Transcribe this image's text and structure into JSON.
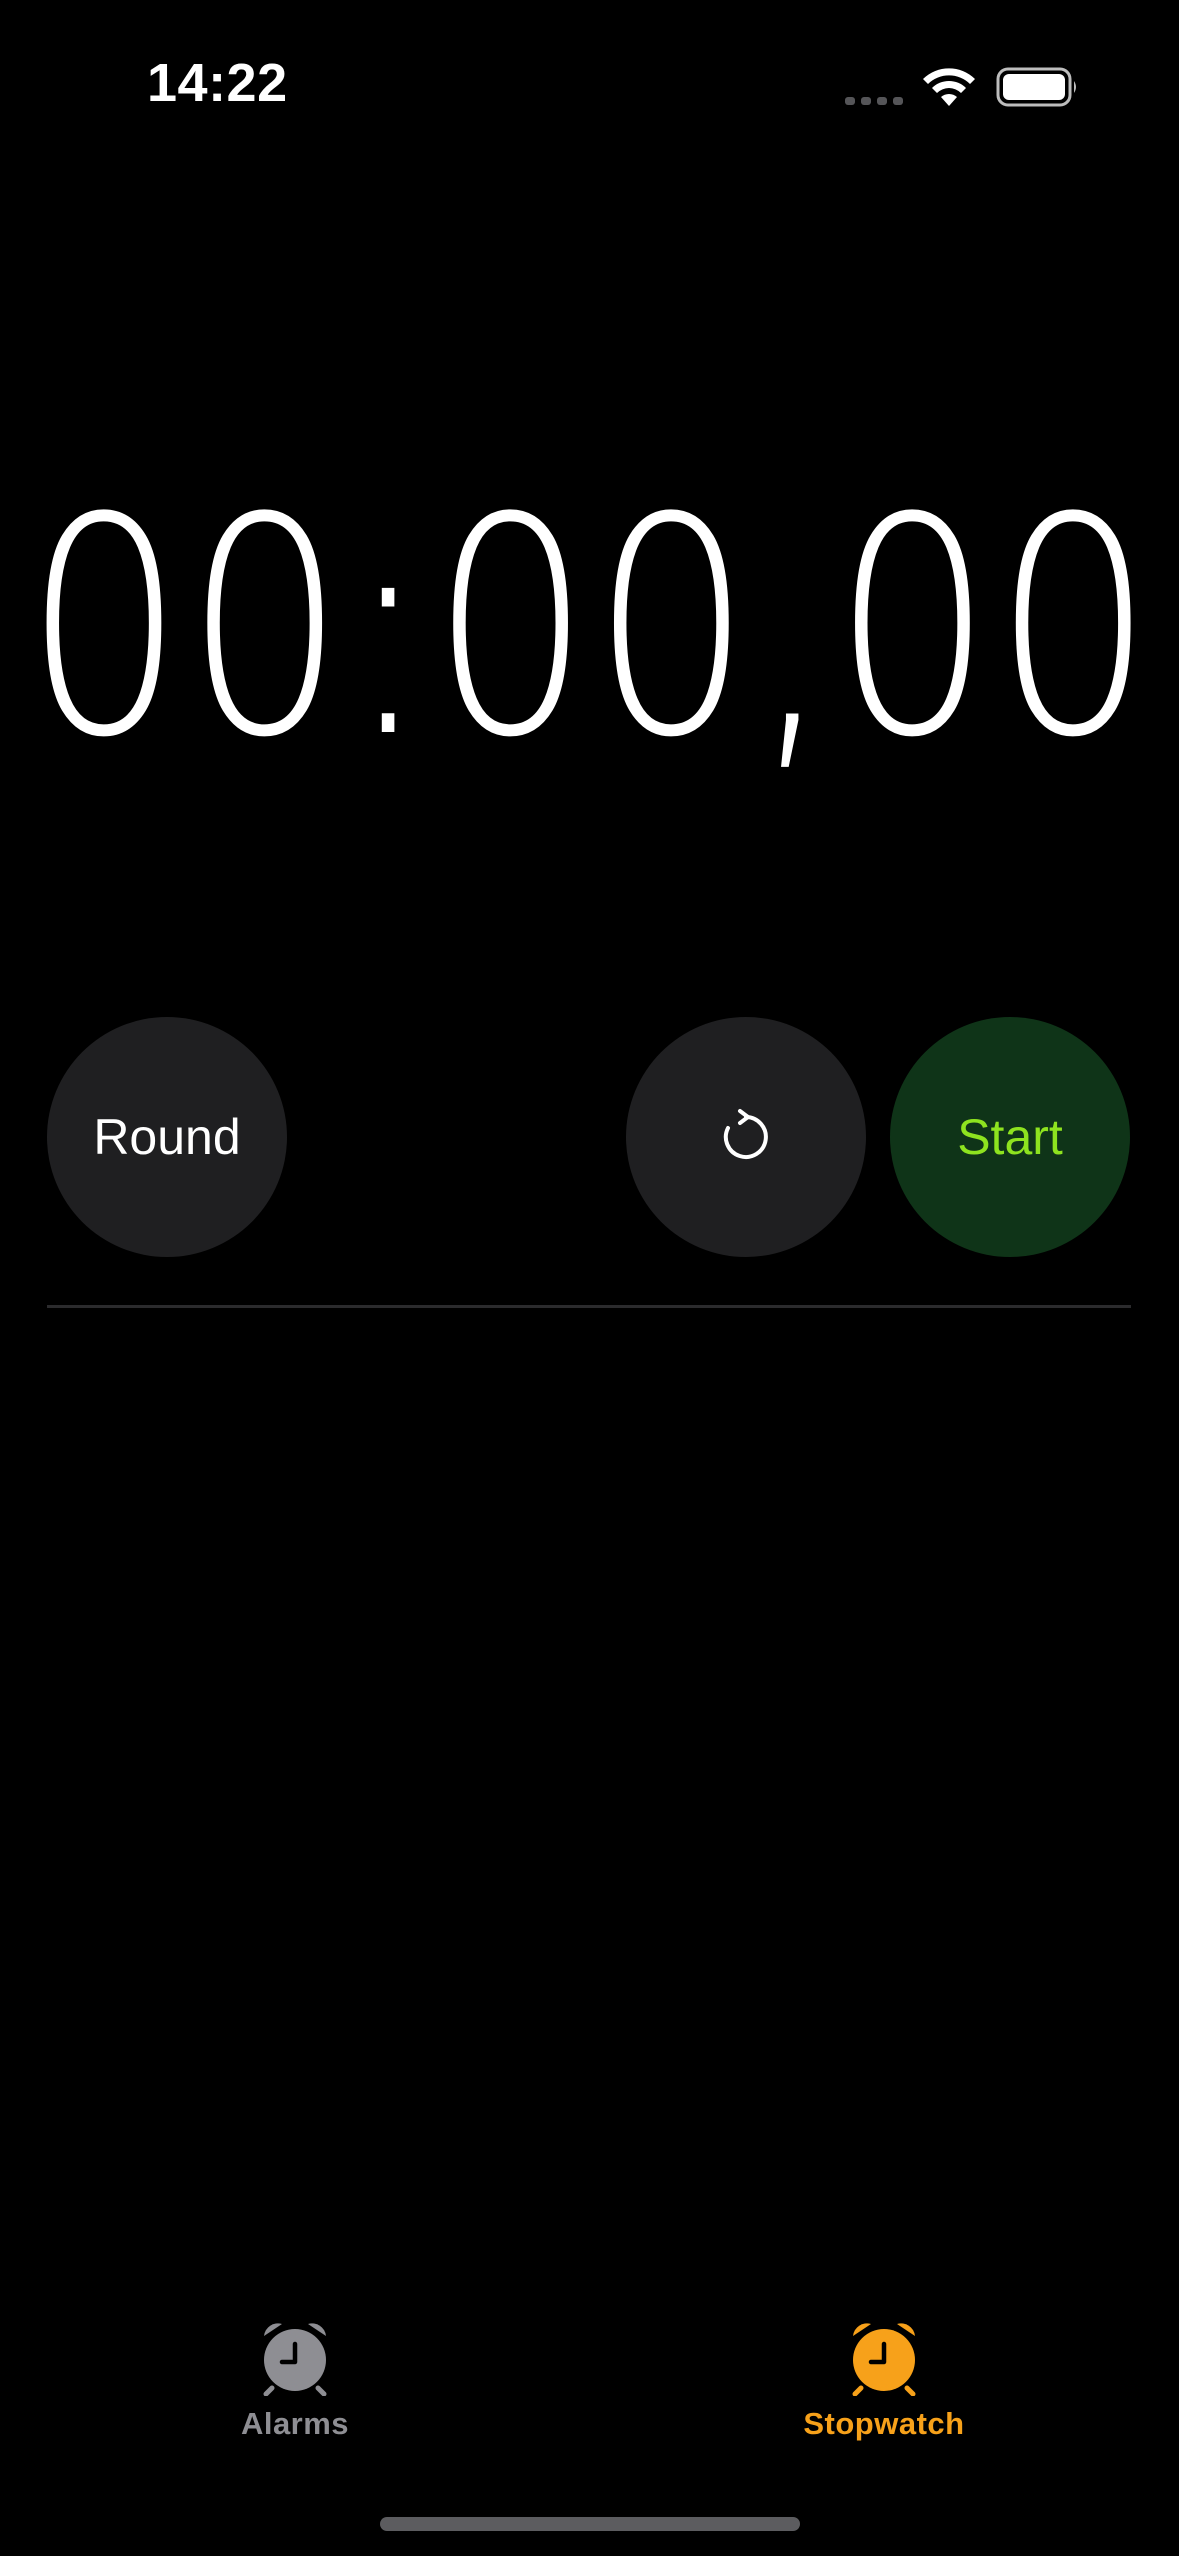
{
  "status_bar": {
    "time": "14:22"
  },
  "stopwatch": {
    "display": "00:00,00"
  },
  "controls": {
    "round_label": "Round",
    "start_label": "Start"
  },
  "tab_bar": {
    "alarms_label": "Alarms",
    "stopwatch_label": "Stopwatch",
    "active_tab": "Stopwatch"
  },
  "colors": {
    "background": "#000000",
    "button_gray": "#1f1f21",
    "start_bg": "#0f3418",
    "start_text": "#8ee31f",
    "accent_orange": "#f7a11a",
    "inactive_gray": "#8e8e93"
  },
  "icons": {
    "reset": "reset-icon",
    "alarms_tab": "alarm-clock-icon",
    "stopwatch_tab": "alarm-clock-icon"
  }
}
